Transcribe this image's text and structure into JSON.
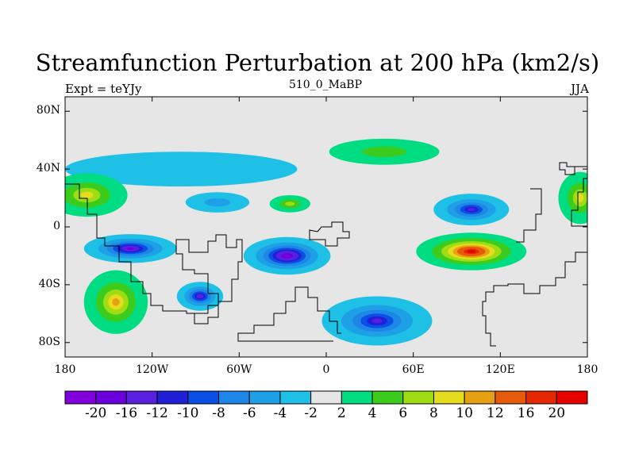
{
  "title": "Streamfunction Perturbation at 200 hPa (km2/s)",
  "left_label": "Expt = teYJy",
  "center_label": "510_0_MaBP",
  "right_label": "JJA",
  "map": {
    "background_color": "#e6e6e6",
    "x_ticks": [
      "180",
      "120W",
      "60W",
      "0",
      "60E",
      "120E",
      "180"
    ],
    "x_tick_lons": [
      -180,
      -120,
      -60,
      0,
      60,
      120,
      180
    ],
    "y_ticks": [
      "80N",
      "40N",
      "0",
      "40S",
      "80S"
    ],
    "y_tick_lats": [
      80,
      40,
      0,
      -40,
      -80
    ],
    "lon_range": [
      -180,
      180
    ],
    "lat_range": [
      -90,
      90
    ]
  },
  "colorbar": {
    "colors": [
      "#8200dc",
      "#6a00dc",
      "#5a20e0",
      "#2020d8",
      "#0a50e6",
      "#1e86e6",
      "#1ea0e6",
      "#1ec0e6",
      "#e6e6e6",
      "#00dc82",
      "#3ccc1e",
      "#a0dc14",
      "#e6dc1e",
      "#e6a014",
      "#e65a0a",
      "#e62800",
      "#e60000"
    ],
    "labels": [
      "-20",
      "-16",
      "-12",
      "-10",
      "-8",
      "-6",
      "-4",
      "-2",
      "2",
      "4",
      "6",
      "8",
      "10",
      "12",
      "16",
      "20"
    ]
  },
  "features": [
    {
      "name": "neg-se-pacific",
      "lon": -135,
      "lat": -15,
      "rx": 32,
      "ry": 10,
      "peak": -16
    },
    {
      "name": "neg-south-atlantic",
      "lon": -27,
      "lat": -20,
      "rx": 30,
      "ry": 13,
      "peak": -20
    },
    {
      "name": "neg-south-america",
      "lon": -87,
      "lat": -48,
      "rx": 16,
      "ry": 10,
      "peak": -14
    },
    {
      "name": "neg-southern-ocean",
      "lon": 35,
      "lat": -65,
      "rx": 38,
      "ry": 17,
      "peak": -12
    },
    {
      "name": "neg-south-asia",
      "lon": 100,
      "lat": 12,
      "rx": 26,
      "ry": 11,
      "peak": -12
    },
    {
      "name": "neg-east-pacific-north",
      "lon": -75,
      "lat": 17,
      "rx": 22,
      "ry": 7,
      "peak": -4
    },
    {
      "name": "neg-north-hemisphere-band",
      "lon": -100,
      "lat": 40,
      "rx": 80,
      "ry": 12,
      "peak": -2
    },
    {
      "name": "pos-indian-ocean",
      "lon": 100,
      "lat": -17,
      "rx": 38,
      "ry": 13,
      "peak": 20
    },
    {
      "name": "pos-southwest-pacific",
      "lon": -145,
      "lat": -52,
      "rx": 22,
      "ry": 22,
      "peak": 10
    },
    {
      "name": "pos-northwest-pacific",
      "lon": -165,
      "lat": 22,
      "rx": 28,
      "ry": 15,
      "peak": 8
    },
    {
      "name": "pos-north-atlantic",
      "lon": -25,
      "lat": 16,
      "rx": 14,
      "ry": 6,
      "peak": 6
    },
    {
      "name": "pos-east-edge",
      "lon": 175,
      "lat": 20,
      "rx": 15,
      "ry": 18,
      "peak": 8
    },
    {
      "name": "pos-north-africa",
      "lon": 40,
      "lat": 52,
      "rx": 38,
      "ry": 9,
      "peak": 4
    }
  ]
}
